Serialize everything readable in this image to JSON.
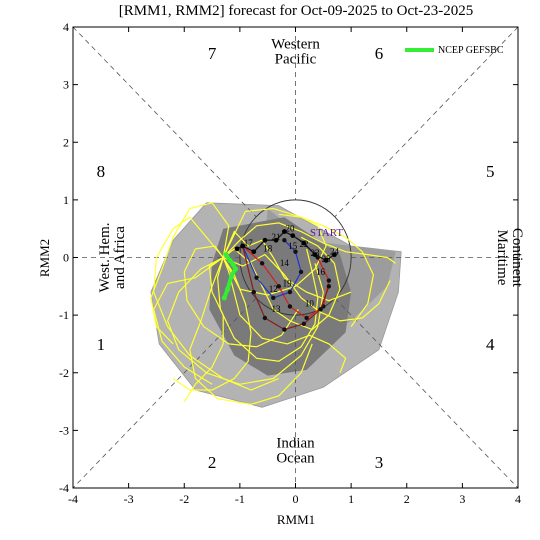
{
  "chart_data": {
    "type": "scatter",
    "title": "[RMM1, RMM2] forecast for Oct-09-2025 to Oct-23-2025",
    "xlabel": "RMM1",
    "ylabel": "RMM2",
    "xlim": [
      -4,
      4
    ],
    "ylim": [
      -4,
      4
    ],
    "xticks": [
      "-4",
      "-3",
      "-2",
      "-1",
      "0",
      "1",
      "2",
      "3",
      "4"
    ],
    "yticks": [
      "-4",
      "-3",
      "-2",
      "-1",
      "0",
      "1",
      "2",
      "3",
      "4"
    ],
    "phases": [
      {
        "label": "7",
        "x": -1.5,
        "y": 3.55
      },
      {
        "label": "6",
        "x": 1.5,
        "y": 3.55
      },
      {
        "label": "8",
        "x": -3.5,
        "y": 1.5
      },
      {
        "label": "5",
        "x": 3.5,
        "y": 1.5
      },
      {
        "label": "1",
        "x": -3.5,
        "y": -1.5
      },
      {
        "label": "4",
        "x": 3.5,
        "y": -1.5
      },
      {
        "label": "2",
        "x": -1.5,
        "y": -3.55
      },
      {
        "label": "3",
        "x": 1.5,
        "y": -3.55
      }
    ],
    "regions": {
      "top": [
        "Western",
        "Pacific"
      ],
      "bottom": [
        "Indian",
        "Ocean"
      ],
      "left": [
        "West. Hem.",
        "and Africa"
      ],
      "right": [
        "Maritime",
        "Continent"
      ]
    },
    "legend": [
      {
        "label": "NCEP GEFSBC",
        "color": "#33ee33"
      }
    ],
    "legend_position": "top-right",
    "unit_circle_radius": 1,
    "start_label": "START",
    "start_point": [
      0.15,
      0.3
    ],
    "light_spread": [
      [
        -1.6,
        0.95
      ],
      [
        -0.3,
        0.9
      ],
      [
        1.0,
        0.2
      ],
      [
        1.9,
        0.1
      ],
      [
        1.85,
        -0.6
      ],
      [
        1.5,
        -1.6
      ],
      [
        0.5,
        -2.25
      ],
      [
        -0.6,
        -2.6
      ],
      [
        -1.8,
        -2.3
      ],
      [
        -2.45,
        -1.5
      ],
      [
        -2.6,
        -0.6
      ],
      [
        -2.2,
        0.3
      ]
    ],
    "dark_spread": [
      [
        -1.3,
        0.5
      ],
      [
        -0.2,
        0.7
      ],
      [
        0.8,
        0.05
      ],
      [
        1.0,
        -0.6
      ],
      [
        0.9,
        -1.3
      ],
      [
        0.2,
        -1.95
      ],
      [
        -0.5,
        -2.05
      ],
      [
        -1.1,
        -1.7
      ],
      [
        -1.55,
        -0.9
      ],
      [
        -1.5,
        -0.1
      ]
    ],
    "gray_fan": [
      [
        -0.5,
        0.85
      ],
      [
        0.2,
        0.3
      ],
      [
        1.8,
        0.1
      ],
      [
        1.65,
        -0.5
      ],
      [
        1.0,
        -1.1
      ],
      [
        0.3,
        -1.5
      ],
      [
        -0.3,
        -1.1
      ],
      [
        -0.6,
        -0.3
      ]
    ],
    "ensemble_members": [
      [
        [
          -1.3,
          0.0
        ],
        [
          -1.1,
          0.15
        ],
        [
          -0.8,
          -0.1
        ],
        [
          -0.6,
          -0.5
        ],
        [
          -0.4,
          -0.9
        ],
        [
          -0.1,
          -1.1
        ],
        [
          0.3,
          -1.25
        ],
        [
          0.6,
          -1.0
        ],
        [
          0.8,
          -0.55
        ],
        [
          0.7,
          -0.1
        ],
        [
          0.4,
          0.2
        ],
        [
          0.1,
          0.35
        ]
      ],
      [
        [
          -1.3,
          0.0
        ],
        [
          -1.4,
          -0.35
        ],
        [
          -1.35,
          -0.9
        ],
        [
          -1.1,
          -1.4
        ],
        [
          -0.7,
          -1.75
        ],
        [
          -0.3,
          -1.8
        ],
        [
          0.1,
          -1.55
        ],
        [
          0.35,
          -1.15
        ],
        [
          0.4,
          -0.7
        ],
        [
          0.3,
          -0.25
        ],
        [
          0.2,
          0.15
        ]
      ],
      [
        [
          -1.3,
          0.0
        ],
        [
          -1.7,
          -0.2
        ],
        [
          -2.1,
          -0.6
        ],
        [
          -2.3,
          -1.1
        ],
        [
          -2.1,
          -1.6
        ],
        [
          -1.6,
          -2.0
        ],
        [
          -1.0,
          -2.2
        ],
        [
          -0.4,
          -2.1
        ],
        [
          0.1,
          -1.7
        ],
        [
          0.4,
          -1.2
        ],
        [
          0.5,
          -0.6
        ],
        [
          0.35,
          -0.1
        ]
      ],
      [
        [
          -1.3,
          0.0
        ],
        [
          -1.0,
          0.3
        ],
        [
          -0.7,
          0.55
        ],
        [
          -0.3,
          0.6
        ],
        [
          0.1,
          0.45
        ],
        [
          0.5,
          0.25
        ],
        [
          0.9,
          0.1
        ],
        [
          1.3,
          0.05
        ],
        [
          1.65,
          0.0
        ],
        [
          1.8,
          -0.1
        ]
      ],
      [
        [
          -1.3,
          0.0
        ],
        [
          -1.6,
          0.35
        ],
        [
          -1.9,
          0.7
        ],
        [
          -2.2,
          0.5
        ],
        [
          -2.5,
          0.0
        ],
        [
          -2.55,
          -0.6
        ],
        [
          -2.3,
          -1.2
        ],
        [
          -1.9,
          -1.7
        ],
        [
          -1.3,
          -2.1
        ],
        [
          -0.8,
          -2.3
        ],
        [
          -0.3,
          -2.1
        ]
      ],
      [
        [
          -1.3,
          0.0
        ],
        [
          -1.1,
          -0.3
        ],
        [
          -0.9,
          -0.8
        ],
        [
          -0.8,
          -1.3
        ],
        [
          -0.85,
          -1.8
        ],
        [
          -1.1,
          -2.1
        ],
        [
          -1.5,
          -2.3
        ],
        [
          -1.9,
          -2.3
        ],
        [
          -2.2,
          -2.1
        ]
      ],
      [
        [
          -1.3,
          0.0
        ],
        [
          -0.9,
          0.8
        ],
        [
          -0.4,
          0.85
        ],
        [
          0.1,
          0.7
        ],
        [
          0.5,
          0.55
        ],
        [
          0.9,
          0.35
        ],
        [
          1.2,
          0.1
        ],
        [
          1.4,
          -0.3
        ],
        [
          1.3,
          -0.8
        ],
        [
          1.0,
          -1.2
        ]
      ],
      [
        [
          -1.3,
          0.0
        ],
        [
          -1.5,
          -0.5
        ],
        [
          -1.7,
          -1.1
        ],
        [
          -1.9,
          -1.6
        ],
        [
          -1.8,
          -2.1
        ],
        [
          -1.4,
          -2.45
        ],
        [
          -0.8,
          -2.55
        ],
        [
          -0.3,
          -2.4
        ],
        [
          0.1,
          -2.0
        ],
        [
          0.3,
          -1.5
        ]
      ],
      [
        [
          -1.3,
          0.0
        ],
        [
          -1.2,
          0.55
        ],
        [
          -1.5,
          0.95
        ],
        [
          -1.9,
          0.85
        ],
        [
          -2.2,
          0.35
        ],
        [
          -2.4,
          -0.2
        ],
        [
          -2.6,
          -0.7
        ],
        [
          -2.5,
          -1.2
        ],
        [
          -2.2,
          -1.5
        ]
      ],
      [
        [
          -1.3,
          0.0
        ],
        [
          -0.95,
          -0.15
        ],
        [
          -0.55,
          0.05
        ],
        [
          -0.2,
          -0.3
        ],
        [
          0.1,
          -0.7
        ],
        [
          0.45,
          -0.95
        ],
        [
          0.8,
          -1.1
        ],
        [
          1.2,
          -1.05
        ],
        [
          1.5,
          -0.8
        ],
        [
          1.7,
          -0.4
        ]
      ],
      [
        [
          -1.3,
          0.0
        ],
        [
          -1.45,
          0.2
        ],
        [
          -1.8,
          0.15
        ],
        [
          -2.0,
          -0.25
        ],
        [
          -1.95,
          -0.75
        ],
        [
          -1.65,
          -1.2
        ],
        [
          -1.2,
          -1.5
        ],
        [
          -0.7,
          -1.55
        ],
        [
          -0.25,
          -1.35
        ],
        [
          0.05,
          -0.9
        ]
      ],
      [
        [
          -1.3,
          0.0
        ],
        [
          -1.0,
          -0.55
        ],
        [
          -0.5,
          -0.65
        ],
        [
          0.0,
          -0.5
        ],
        [
          0.35,
          -0.2
        ],
        [
          0.55,
          0.2
        ],
        [
          0.4,
          0.55
        ],
        [
          0.1,
          0.7
        ],
        [
          -0.3,
          0.75
        ]
      ],
      [
        [
          -1.3,
          0.0
        ],
        [
          -1.55,
          -0.15
        ],
        [
          -1.5,
          -0.6
        ],
        [
          -1.3,
          -1.0
        ],
        [
          -1.3,
          -1.5
        ],
        [
          -1.5,
          -1.9
        ],
        [
          -1.8,
          -2.2
        ],
        [
          -2.0,
          -2.5
        ]
      ],
      [
        [
          -1.3,
          0.0
        ],
        [
          -1.1,
          0.45
        ],
        [
          -0.85,
          0.2
        ],
        [
          -0.6,
          0.3
        ],
        [
          -0.4,
          0.0
        ],
        [
          -0.2,
          -0.35
        ],
        [
          0.2,
          -0.6
        ],
        [
          0.6,
          -0.75
        ],
        [
          1.0,
          -0.6
        ]
      ],
      [
        [
          -1.3,
          0.0
        ],
        [
          -1.8,
          -0.35
        ],
        [
          -2.3,
          -0.45
        ],
        [
          -2.55,
          -0.9
        ],
        [
          -2.4,
          -1.45
        ],
        [
          -2.0,
          -1.9
        ],
        [
          -1.5,
          -2.2
        ]
      ],
      [
        [
          -1.3,
          0.0
        ],
        [
          -1.2,
          -0.25
        ],
        [
          -1.0,
          -1.0
        ],
        [
          -0.6,
          -1.4
        ],
        [
          -0.15,
          -1.5
        ],
        [
          0.25,
          -1.35
        ],
        [
          0.6,
          -1.5
        ],
        [
          0.9,
          -1.75
        ],
        [
          0.8,
          -2.0
        ]
      ]
    ],
    "ensemble_color": "#ffff33",
    "series": [
      {
        "name": "NCEP GEFSBC",
        "color": "#33ee33",
        "points": [
          [
            -1.25,
            0.05
          ],
          [
            -1.18,
            -0.05
          ],
          [
            -1.12,
            -0.12
          ],
          [
            -1.08,
            -0.2
          ],
          [
            -1.15,
            -0.32
          ],
          [
            -1.22,
            -0.55
          ],
          [
            -1.28,
            -0.7
          ]
        ]
      }
    ],
    "observed_path": {
      "color": "#1a1a1a",
      "day_labels": [
        {
          "label": "20",
          "x": -0.1,
          "y": 0.45
        },
        {
          "label": "21",
          "x": -0.35,
          "y": 0.3
        },
        {
          "label": "22",
          "x": 0.15,
          "y": 0.18
        },
        {
          "label": "23",
          "x": 0.35,
          "y": 0.03
        },
        {
          "label": "24",
          "x": 0.7,
          "y": 0.05
        },
        {
          "label": "25",
          "x": 0.55,
          "y": -0.08
        },
        {
          "label": "14",
          "x": -0.2,
          "y": -0.15
        },
        {
          "label": "15",
          "x": -0.05,
          "y": 0.15
        },
        {
          "label": "16",
          "x": 0.45,
          "y": -0.3
        },
        {
          "label": "17",
          "x": -0.85,
          "y": 0.2
        },
        {
          "label": "18",
          "x": -0.5,
          "y": 0.1
        },
        {
          "label": "19",
          "x": -0.15,
          "y": -0.5
        },
        {
          "label": "10",
          "x": 0.25,
          "y": -0.85
        },
        {
          "label": "12",
          "x": -0.4,
          "y": -0.6
        },
        {
          "label": "13",
          "x": -0.35,
          "y": -0.95
        }
      ],
      "points": [
        [
          -1.05,
          0.15
        ],
        [
          -0.95,
          0.2
        ],
        [
          -0.75,
          0.1
        ],
        [
          -0.55,
          0.3
        ],
        [
          -0.35,
          0.3
        ],
        [
          -0.2,
          0.45
        ],
        [
          -0.05,
          0.38
        ],
        [
          0.15,
          0.25
        ],
        [
          0.35,
          0.05
        ],
        [
          0.55,
          -0.05
        ],
        [
          0.7,
          0.05
        ]
      ]
    },
    "forecast_paths": [
      {
        "color": "#d81e1e",
        "points": [
          [
            -0.95,
            0.2
          ],
          [
            -0.6,
            -0.1
          ],
          [
            -0.3,
            -0.5
          ],
          [
            -0.1,
            -0.85
          ],
          [
            0.2,
            -1.05
          ],
          [
            0.5,
            -0.85
          ],
          [
            0.6,
            -0.4
          ],
          [
            0.4,
            0.0
          ]
        ]
      },
      {
        "color": "#2233cc",
        "points": [
          [
            -0.95,
            0.2
          ],
          [
            -0.7,
            -0.35
          ],
          [
            -0.4,
            -0.7
          ],
          [
            -0.1,
            -0.6
          ],
          [
            0.1,
            -0.25
          ],
          [
            0.0,
            0.1
          ],
          [
            -0.2,
            0.3
          ]
        ]
      },
      {
        "color": "#8a1a1a",
        "points": [
          [
            -0.95,
            0.2
          ],
          [
            -0.75,
            -0.6
          ],
          [
            -0.55,
            -1.05
          ],
          [
            -0.2,
            -1.25
          ],
          [
            0.15,
            -1.15
          ],
          [
            0.45,
            -0.9
          ],
          [
            0.6,
            -0.5
          ]
        ]
      }
    ]
  }
}
